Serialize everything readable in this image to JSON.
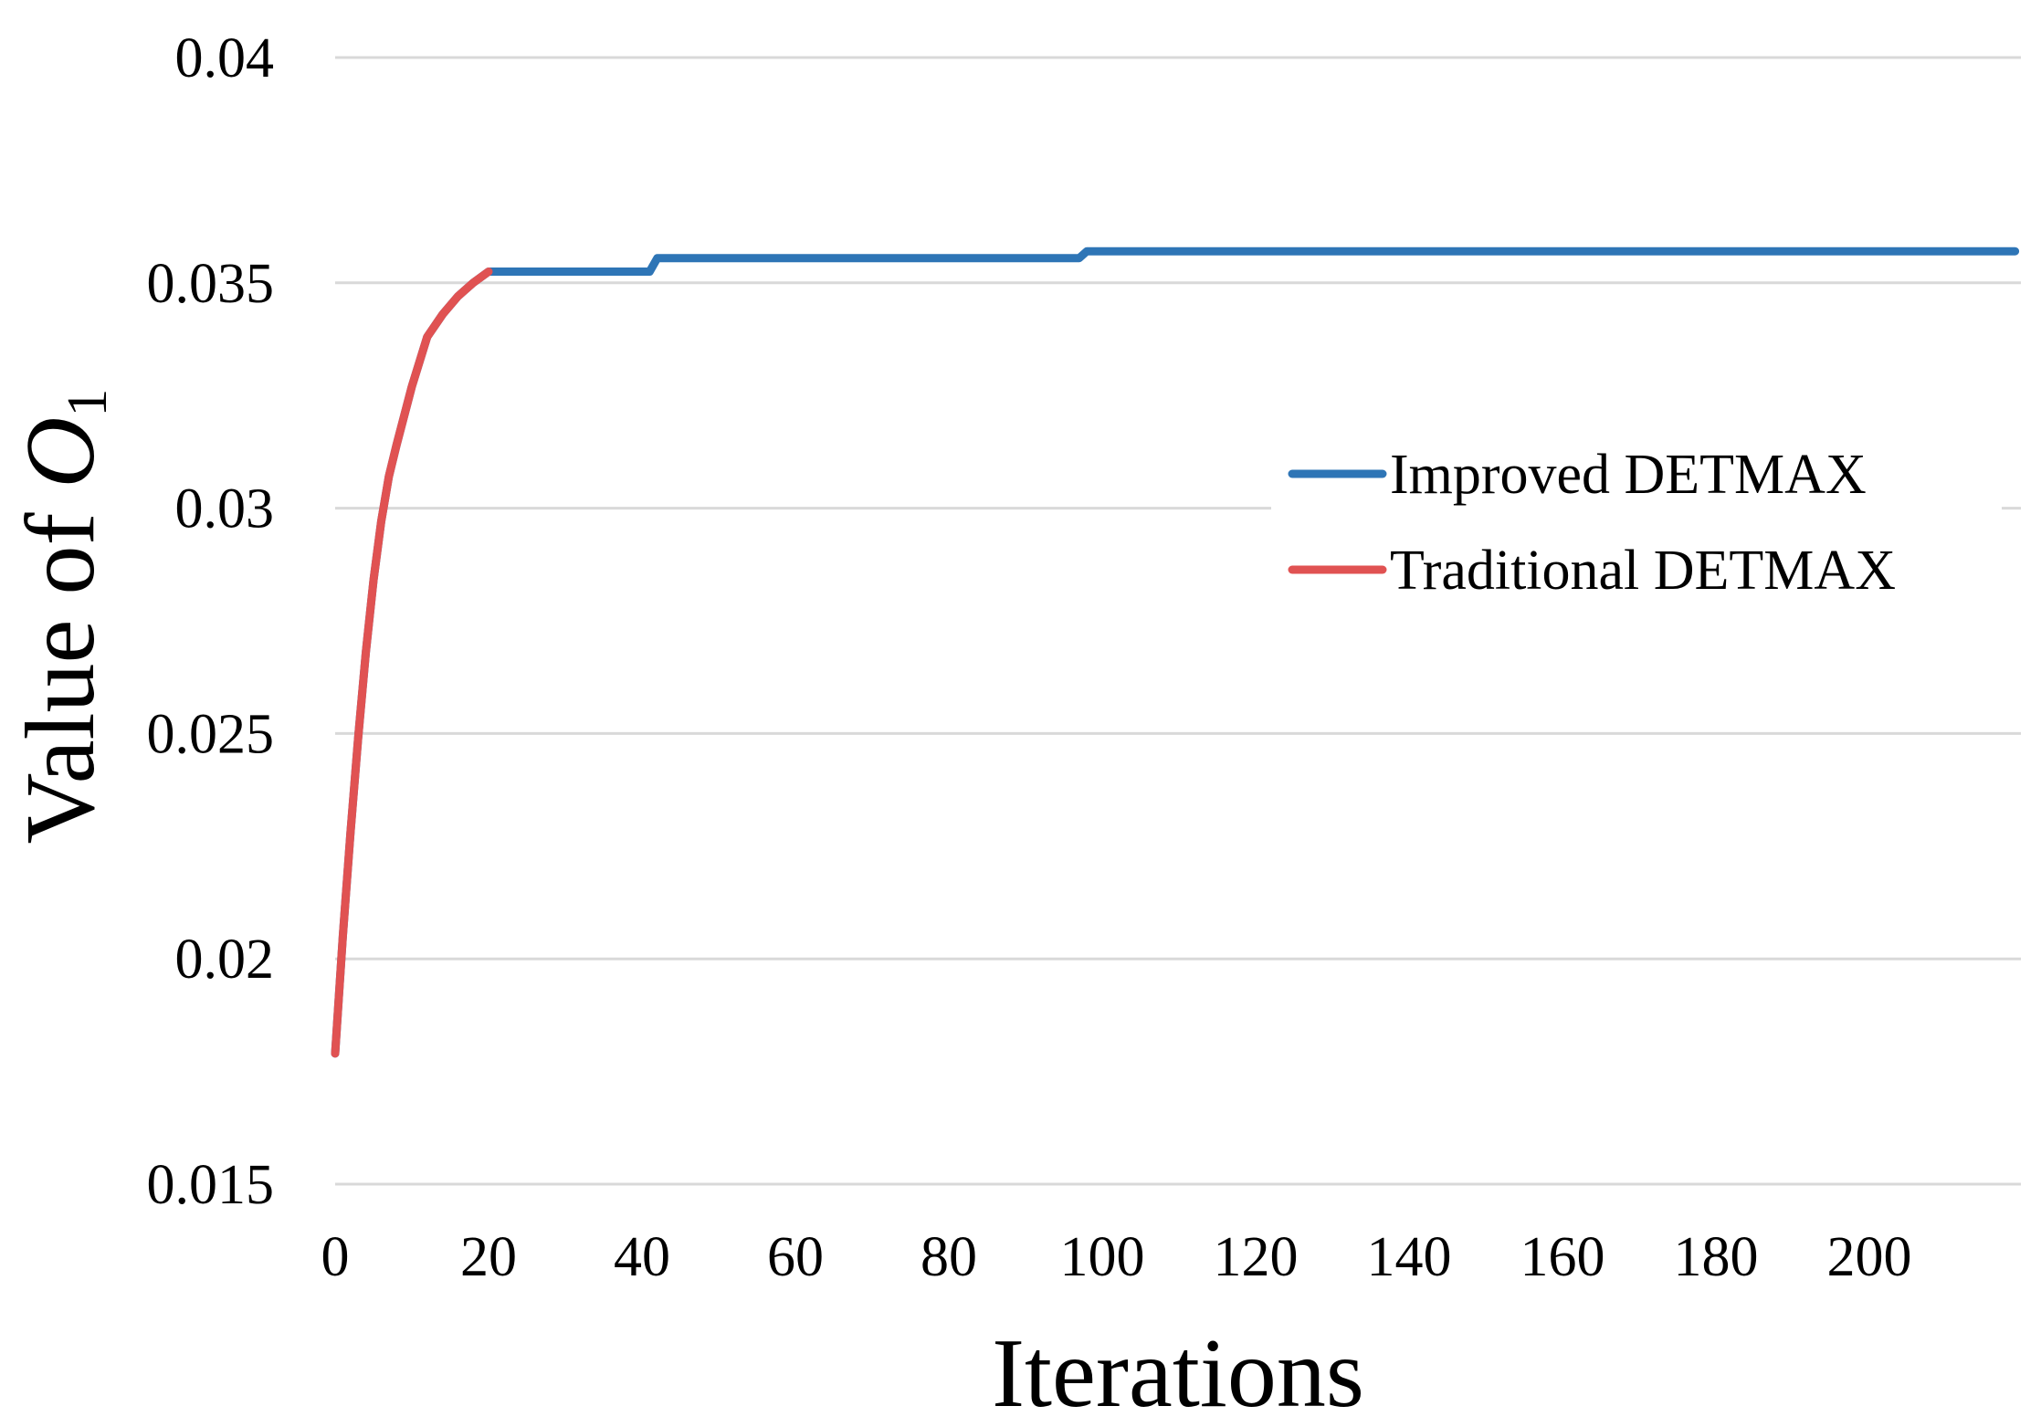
{
  "chart_data": {
    "type": "line",
    "title": "",
    "xlabel": "Iterations",
    "ylabel_prefix": "Value of ",
    "ylabel_symbol": "O",
    "ylabel_subscript": "1",
    "xlim": [
      0,
      219
    ],
    "ylim": [
      0.015,
      0.04
    ],
    "x_ticks": [
      0,
      20,
      40,
      60,
      80,
      100,
      120,
      140,
      160,
      180,
      200
    ],
    "x_tick_labels": [
      "0",
      "20",
      "40",
      "60",
      "80",
      "100",
      "120",
      "140",
      "160",
      "180",
      "200"
    ],
    "y_ticks": [
      0.015,
      0.02,
      0.025,
      0.03,
      0.035,
      0.04
    ],
    "y_tick_labels": [
      "0.015",
      "0.02",
      "0.025",
      "0.03",
      "0.035",
      "0.04"
    ],
    "grid": "horizontal",
    "legend_position": "right-middle",
    "series": [
      {
        "name": "Improved DETMAX",
        "color": "#2E75B6",
        "x": [
          0,
          1,
          2,
          3,
          4,
          5,
          6,
          7,
          8,
          10,
          12,
          14,
          16,
          18,
          20,
          30,
          41,
          42,
          48,
          60,
          80,
          97,
          98,
          100,
          120,
          150,
          200,
          219
        ],
        "y": [
          0.0179,
          0.0205,
          0.0228,
          0.0249,
          0.0268,
          0.0284,
          0.0297,
          0.0307,
          0.0314,
          0.0327,
          0.0338,
          0.0343,
          0.0347,
          0.035,
          0.03525,
          0.03525,
          0.03525,
          0.03555,
          0.03555,
          0.03555,
          0.03555,
          0.03555,
          0.0357,
          0.0357,
          0.0357,
          0.0357,
          0.0357,
          0.0357
        ]
      },
      {
        "name": "Traditional DETMAX",
        "color": "#E05252",
        "x": [
          0,
          1,
          2,
          3,
          4,
          5,
          6,
          7,
          8,
          10,
          12,
          14,
          15,
          16,
          18,
          20
        ],
        "y": [
          0.0179,
          0.0205,
          0.0228,
          0.0249,
          0.0268,
          0.0284,
          0.0297,
          0.0307,
          0.0314,
          0.0327,
          0.0338,
          0.0343,
          0.0345,
          0.0347,
          0.035,
          0.03525
        ]
      }
    ]
  }
}
